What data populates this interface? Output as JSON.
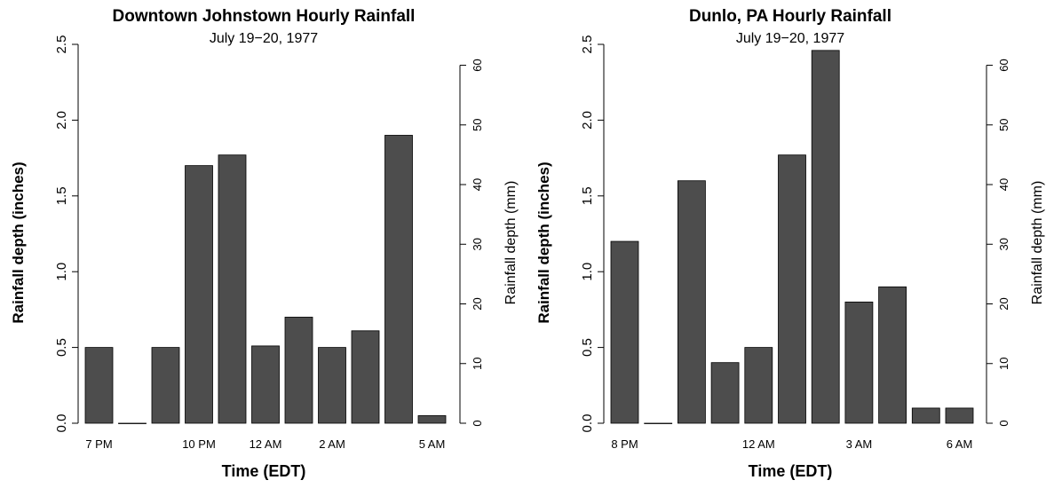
{
  "chart_data": [
    {
      "type": "bar",
      "title": "Downtown Johnstown Hourly Rainfall",
      "subtitle": "July 19−20, 1977",
      "xlabel": "Time (EDT)",
      "ylabel": "Rainfall depth (inches)",
      "ylabel_right": "Rainfall depth (mm)",
      "ylim": [
        0,
        2.5
      ],
      "ylim_right": [
        0,
        63.5
      ],
      "yticks": [
        "0.0",
        "0.5",
        "1.0",
        "1.5",
        "2.0",
        "2.5"
      ],
      "yticks_right": [
        "0",
        "10",
        "20",
        "30",
        "40",
        "50",
        "60"
      ],
      "categories": [
        "7 PM",
        "",
        "",
        "10 PM",
        "",
        "12 AM",
        "",
        "2 AM",
        "",
        "",
        "5 AM"
      ],
      "values": [
        0.5,
        0.0,
        0.5,
        1.7,
        1.77,
        0.51,
        0.7,
        0.5,
        0.61,
        1.9,
        0.05
      ],
      "grid": false
    },
    {
      "type": "bar",
      "title": "Dunlo, PA Hourly Rainfall",
      "subtitle": "July 19−20, 1977",
      "xlabel": "Time (EDT)",
      "ylabel": "Rainfall depth (inches)",
      "ylabel_right": "Rainfall depth (mm)",
      "ylim": [
        0,
        2.5
      ],
      "ylim_right": [
        0,
        63.5
      ],
      "yticks": [
        "0.0",
        "0.5",
        "1.0",
        "1.5",
        "2.0",
        "2.5"
      ],
      "yticks_right": [
        "0",
        "10",
        "20",
        "30",
        "40",
        "50",
        "60"
      ],
      "categories": [
        "8 PM",
        "",
        "",
        "",
        "12 AM",
        "",
        "",
        "3 AM",
        "",
        "",
        "6 AM"
      ],
      "values": [
        1.2,
        0.0,
        1.6,
        0.4,
        0.5,
        1.77,
        2.46,
        0.8,
        0.9,
        0.1,
        0.1
      ],
      "grid": false
    }
  ]
}
